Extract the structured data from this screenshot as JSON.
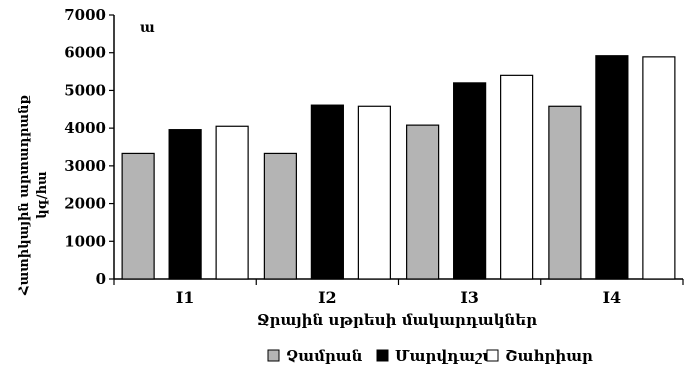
{
  "chart_data": {
    "type": "bar",
    "panel_label": "ա",
    "categories": [
      "I1",
      "I2",
      "I3",
      "I4"
    ],
    "series": [
      {
        "name": "Չամրան",
        "color": "#b4b4b4",
        "values": [
          3330,
          3330,
          4080,
          4580
        ]
      },
      {
        "name": "Մարվդաշտ",
        "color": "#000000",
        "values": [
          3960,
          4610,
          5200,
          5920
        ]
      },
      {
        "name": "Շահրիար",
        "color": "#ffffff",
        "values": [
          4050,
          4580,
          5400,
          5890
        ]
      }
    ],
    "xlabel": "Ջրային սթրեսի մակարդակներ",
    "ylabel_line1": "Հատիկային արտադրանք",
    "ylabel_line2": "կգ/հա",
    "ylim": [
      0,
      7000
    ],
    "yticks": [
      "0",
      "1000",
      "2000",
      "3000",
      "4000",
      "5000",
      "6000",
      "7000"
    ],
    "grid": false,
    "legend_position": "bottom"
  }
}
